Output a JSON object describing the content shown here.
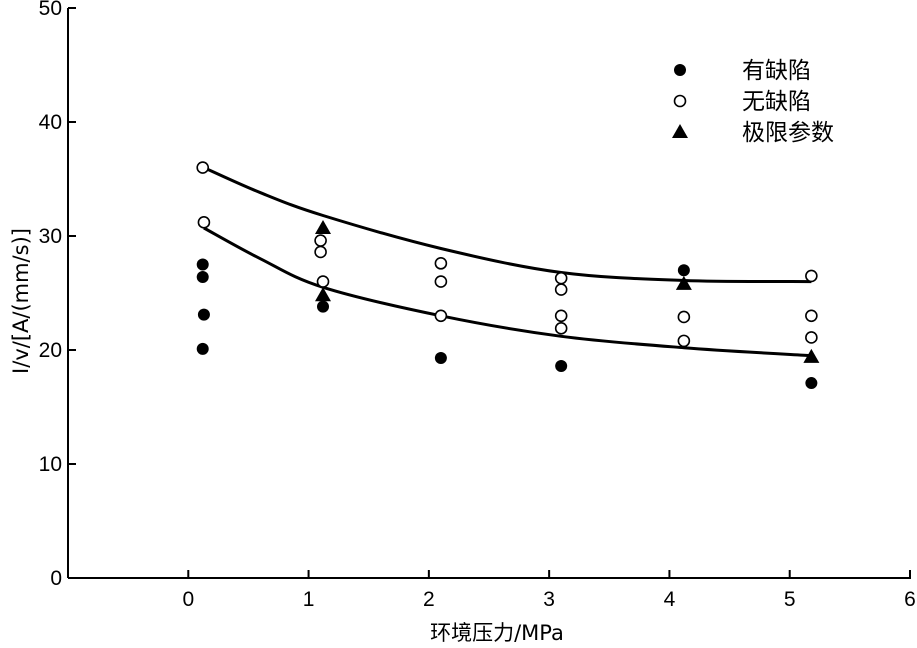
{
  "chart_data": {
    "type": "scatter",
    "xlabel": "环境压力/MPa",
    "ylabel": "I/v/[A/(mm/s)]",
    "xlim": [
      -1,
      6
    ],
    "ylim": [
      0,
      50
    ],
    "x_ticks": [
      0,
      1,
      2,
      3,
      4,
      5,
      6
    ],
    "y_ticks": [
      0,
      10,
      20,
      30,
      40,
      50
    ],
    "grid": false,
    "legend_position": "top-right",
    "series": [
      {
        "name": "有缺陷",
        "marker": "filled-circle",
        "points": [
          [
            0.12,
            27.5
          ],
          [
            0.12,
            26.4
          ],
          [
            0.13,
            23.1
          ],
          [
            0.12,
            20.1
          ],
          [
            1.12,
            23.8
          ],
          [
            2.1,
            19.3
          ],
          [
            3.1,
            18.6
          ],
          [
            4.12,
            27.0
          ],
          [
            5.18,
            17.1
          ]
        ]
      },
      {
        "name": "无缺陷",
        "marker": "open-circle",
        "points": [
          [
            0.12,
            36.0
          ],
          [
            0.13,
            31.2
          ],
          [
            1.1,
            29.6
          ],
          [
            1.1,
            28.6
          ],
          [
            1.12,
            26.0
          ],
          [
            2.1,
            27.6
          ],
          [
            2.1,
            26.0
          ],
          [
            2.1,
            23.0
          ],
          [
            3.1,
            26.3
          ],
          [
            3.1,
            25.3
          ],
          [
            3.1,
            23.0
          ],
          [
            3.1,
            21.9
          ],
          [
            4.12,
            22.9
          ],
          [
            4.12,
            20.8
          ],
          [
            5.18,
            26.5
          ],
          [
            5.18,
            23.0
          ],
          [
            5.18,
            21.1
          ]
        ]
      },
      {
        "name": "极限参数",
        "marker": "filled-triangle",
        "points": [
          [
            1.12,
            30.7
          ],
          [
            1.12,
            24.8
          ],
          [
            4.12,
            25.8
          ],
          [
            5.18,
            19.4
          ]
        ]
      }
    ],
    "fit_curves": [
      {
        "points": [
          [
            0.13,
            36.0
          ],
          [
            0.6,
            33.8
          ],
          [
            1.12,
            31.8
          ],
          [
            2.1,
            28.9
          ],
          [
            3.1,
            26.8
          ],
          [
            4.12,
            26.1
          ],
          [
            5.18,
            26.0
          ]
        ]
      },
      {
        "points": [
          [
            0.13,
            30.7
          ],
          [
            0.6,
            28.0
          ],
          [
            1.12,
            25.5
          ],
          [
            2.1,
            23.0
          ],
          [
            3.1,
            21.2
          ],
          [
            4.12,
            20.2
          ],
          [
            5.18,
            19.5
          ]
        ]
      }
    ]
  }
}
